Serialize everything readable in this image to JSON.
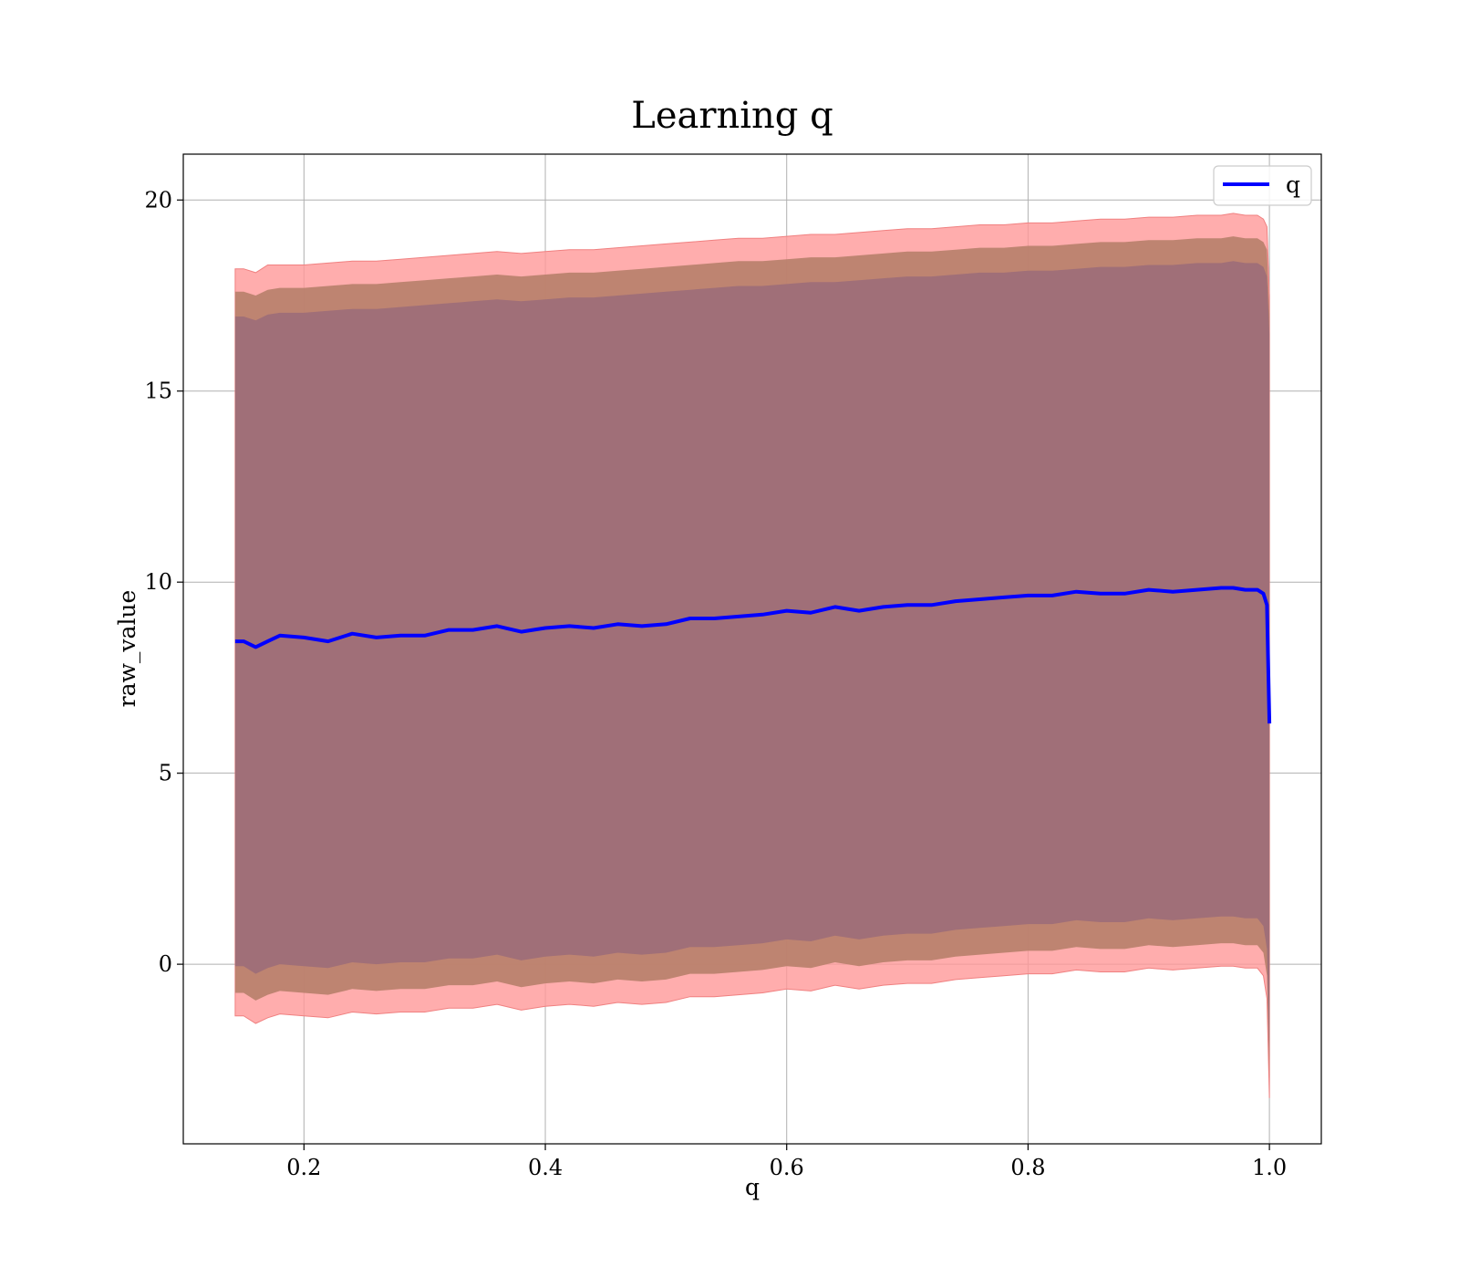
{
  "chart_data": {
    "type": "line",
    "title": "Learning q",
    "xlabel": "q",
    "ylabel": "raw_value",
    "xlim": [
      0.1,
      1.043
    ],
    "ylim": [
      -4.7,
      21.2
    ],
    "xticks": [
      0.2,
      0.4,
      0.6,
      0.8,
      1.0
    ],
    "xtick_labels": [
      "0.2",
      "0.4",
      "0.6",
      "0.8",
      "1.0"
    ],
    "yticks": [
      0,
      5,
      10,
      15,
      20
    ],
    "ytick_labels": [
      "0",
      "5",
      "10",
      "15",
      "20"
    ],
    "grid": true,
    "legend_position": "top-right",
    "colors": {
      "line": "#0000ff",
      "band_outer": "#ff9999",
      "band_middle": "#b77f6a",
      "band_inner": "#a06f78",
      "grid": "#b0b0b0"
    },
    "series": [
      {
        "name": "q",
        "x": [
          0.143,
          0.15,
          0.16,
          0.17,
          0.18,
          0.2,
          0.22,
          0.24,
          0.26,
          0.28,
          0.3,
          0.32,
          0.34,
          0.36,
          0.38,
          0.4,
          0.42,
          0.44,
          0.46,
          0.48,
          0.5,
          0.52,
          0.54,
          0.56,
          0.58,
          0.6,
          0.62,
          0.64,
          0.66,
          0.68,
          0.7,
          0.72,
          0.74,
          0.76,
          0.78,
          0.8,
          0.82,
          0.84,
          0.86,
          0.88,
          0.9,
          0.92,
          0.94,
          0.96,
          0.97,
          0.98,
          0.99,
          0.995,
          0.998,
          1.0
        ],
        "y": [
          8.45,
          8.45,
          8.3,
          8.45,
          8.6,
          8.55,
          8.45,
          8.65,
          8.55,
          8.6,
          8.6,
          8.75,
          8.75,
          8.85,
          8.7,
          8.8,
          8.85,
          8.8,
          8.9,
          8.85,
          8.9,
          9.05,
          9.05,
          9.1,
          9.15,
          9.25,
          9.2,
          9.35,
          9.25,
          9.35,
          9.4,
          9.4,
          9.5,
          9.55,
          9.6,
          9.65,
          9.65,
          9.75,
          9.7,
          9.7,
          9.8,
          9.75,
          9.8,
          9.85,
          9.85,
          9.8,
          9.8,
          9.7,
          9.4,
          6.3
        ],
        "band_outer_upper": [
          18.2,
          18.2,
          18.1,
          18.3,
          18.3,
          18.3,
          18.35,
          18.4,
          18.4,
          18.45,
          18.5,
          18.55,
          18.6,
          18.65,
          18.6,
          18.65,
          18.7,
          18.7,
          18.75,
          18.8,
          18.85,
          18.9,
          18.95,
          19.0,
          19.0,
          19.05,
          19.1,
          19.1,
          19.15,
          19.2,
          19.25,
          19.25,
          19.3,
          19.35,
          19.35,
          19.4,
          19.4,
          19.45,
          19.5,
          19.5,
          19.55,
          19.55,
          19.6,
          19.6,
          19.65,
          19.6,
          19.6,
          19.5,
          19.3,
          17.5
        ],
        "band_middle_upper": [
          17.6,
          17.6,
          17.5,
          17.65,
          17.7,
          17.7,
          17.75,
          17.8,
          17.8,
          17.85,
          17.9,
          17.95,
          18.0,
          18.05,
          18.0,
          18.05,
          18.1,
          18.1,
          18.15,
          18.2,
          18.25,
          18.3,
          18.35,
          18.4,
          18.4,
          18.45,
          18.5,
          18.5,
          18.55,
          18.6,
          18.65,
          18.65,
          18.7,
          18.75,
          18.75,
          18.8,
          18.8,
          18.85,
          18.9,
          18.9,
          18.95,
          18.95,
          19.0,
          19.0,
          19.05,
          19.0,
          19.0,
          18.9,
          18.7,
          17.0
        ],
        "band_inner_upper": [
          16.95,
          16.95,
          16.85,
          17.0,
          17.05,
          17.05,
          17.1,
          17.15,
          17.15,
          17.2,
          17.25,
          17.3,
          17.35,
          17.4,
          17.35,
          17.4,
          17.45,
          17.45,
          17.5,
          17.55,
          17.6,
          17.65,
          17.7,
          17.75,
          17.75,
          17.8,
          17.85,
          17.85,
          17.9,
          17.95,
          18.0,
          18.0,
          18.05,
          18.1,
          18.1,
          18.15,
          18.15,
          18.2,
          18.25,
          18.25,
          18.3,
          18.3,
          18.35,
          18.35,
          18.4,
          18.35,
          18.35,
          18.25,
          18.0,
          16.5
        ],
        "band_inner_lower": [
          -0.05,
          -0.05,
          -0.25,
          -0.1,
          0.0,
          -0.05,
          -0.1,
          0.05,
          0.0,
          0.05,
          0.05,
          0.15,
          0.15,
          0.25,
          0.1,
          0.2,
          0.25,
          0.2,
          0.3,
          0.25,
          0.3,
          0.45,
          0.45,
          0.5,
          0.55,
          0.65,
          0.6,
          0.75,
          0.65,
          0.75,
          0.8,
          0.8,
          0.9,
          0.95,
          1.0,
          1.05,
          1.05,
          1.15,
          1.1,
          1.1,
          1.2,
          1.15,
          1.2,
          1.25,
          1.25,
          1.2,
          1.2,
          1.0,
          0.4,
          -2.5
        ],
        "band_middle_lower": [
          -0.75,
          -0.75,
          -0.95,
          -0.8,
          -0.7,
          -0.75,
          -0.8,
          -0.65,
          -0.7,
          -0.65,
          -0.65,
          -0.55,
          -0.55,
          -0.45,
          -0.6,
          -0.5,
          -0.45,
          -0.5,
          -0.4,
          -0.45,
          -0.4,
          -0.25,
          -0.25,
          -0.2,
          -0.15,
          -0.05,
          -0.1,
          0.05,
          -0.05,
          0.05,
          0.1,
          0.1,
          0.2,
          0.25,
          0.3,
          0.35,
          0.35,
          0.45,
          0.4,
          0.4,
          0.5,
          0.45,
          0.5,
          0.55,
          0.55,
          0.5,
          0.5,
          0.3,
          -0.3,
          -3.0
        ],
        "band_outer_lower": [
          -1.35,
          -1.35,
          -1.55,
          -1.4,
          -1.3,
          -1.35,
          -1.4,
          -1.25,
          -1.3,
          -1.25,
          -1.25,
          -1.15,
          -1.15,
          -1.05,
          -1.2,
          -1.1,
          -1.05,
          -1.1,
          -1.0,
          -1.05,
          -1.0,
          -0.85,
          -0.85,
          -0.8,
          -0.75,
          -0.65,
          -0.7,
          -0.55,
          -0.65,
          -0.55,
          -0.5,
          -0.5,
          -0.4,
          -0.35,
          -0.3,
          -0.25,
          -0.25,
          -0.15,
          -0.2,
          -0.2,
          -0.1,
          -0.15,
          -0.1,
          -0.05,
          -0.05,
          -0.1,
          -0.1,
          -0.3,
          -0.9,
          -3.5
        ]
      }
    ]
  }
}
